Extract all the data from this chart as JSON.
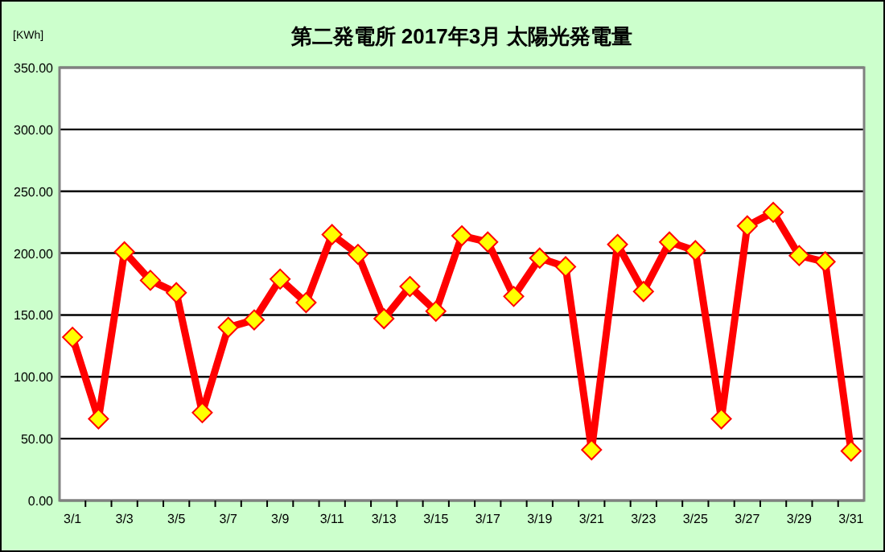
{
  "chart_data": {
    "type": "line",
    "title": "第二発電所  2017年3月  太陽光発電量",
    "ylabel": "[KWh]",
    "categories": [
      "3/1",
      null,
      "3/3",
      null,
      "3/5",
      null,
      "3/7",
      null,
      "3/9",
      null,
      "3/11",
      null,
      "3/13",
      null,
      "3/15",
      null,
      "3/17",
      null,
      "3/19",
      null,
      "3/21",
      null,
      "3/23",
      null,
      "3/25",
      null,
      "3/27",
      null,
      "3/29",
      null,
      "3/31"
    ],
    "series": [
      {
        "color": "#ff0000",
        "values": [
          132,
          66,
          201,
          178,
          168,
          71,
          140,
          146,
          179,
          160,
          215,
          199,
          147,
          173,
          153,
          214,
          209,
          165,
          196,
          189,
          41,
          207,
          169,
          209,
          202,
          66,
          222,
          233,
          198,
          193,
          40
        ]
      }
    ],
    "ylim": [
      0,
      350
    ],
    "yticks": [
      {
        "value": 0,
        "label": "0.00"
      },
      {
        "value": 50,
        "label": "50.00"
      },
      {
        "value": 100,
        "label": "100.00"
      },
      {
        "value": 150,
        "label": "150.00"
      },
      {
        "value": 200,
        "label": "200.00"
      },
      {
        "value": 250,
        "label": "250.00"
      },
      {
        "value": 300,
        "label": "300.00"
      },
      {
        "value": 350,
        "label": "350.00"
      }
    ],
    "grid": "y",
    "marker": "diamond",
    "line_style": "solid"
  }
}
